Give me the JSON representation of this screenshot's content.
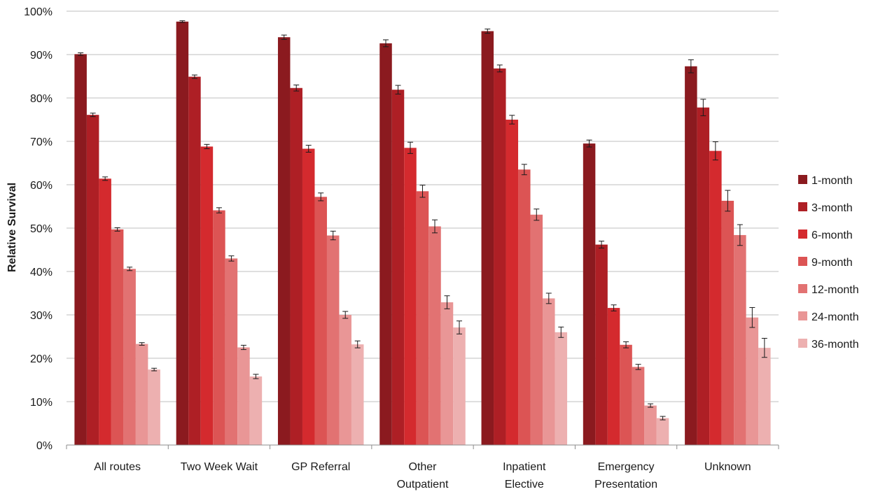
{
  "chart_data": {
    "type": "bar",
    "title": "",
    "xlabel": "",
    "ylabel": "Relative Survival",
    "ylim": [
      0,
      100
    ],
    "yticks": [
      "0%",
      "10%",
      "20%",
      "30%",
      "40%",
      "50%",
      "60%",
      "70%",
      "80%",
      "90%",
      "100%"
    ],
    "grid": true,
    "legend_position": "right",
    "categories": [
      [
        "All routes"
      ],
      [
        "Two Week Wait"
      ],
      [
        "GP Referral"
      ],
      [
        "Other",
        "Outpatient"
      ],
      [
        "Inpatient",
        "Elective"
      ],
      [
        "Emergency",
        "Presentation"
      ],
      [
        "Unknown"
      ]
    ],
    "series": [
      {
        "name": "1-month",
        "color": "#8B1A1F",
        "values": [
          90.1,
          97.6,
          94.0,
          92.6,
          95.4,
          69.5,
          87.3
        ],
        "err": [
          0.3,
          0.2,
          0.5,
          0.8,
          0.5,
          0.8,
          1.5
        ]
      },
      {
        "name": "3-month",
        "color": "#AE1F25",
        "values": [
          76.1,
          84.9,
          82.3,
          81.9,
          86.8,
          46.2,
          77.8
        ],
        "err": [
          0.4,
          0.4,
          0.7,
          1.0,
          0.8,
          0.8,
          1.9
        ]
      },
      {
        "name": "6-month",
        "color": "#D42A2E",
        "values": [
          61.4,
          68.8,
          68.3,
          68.5,
          75.0,
          31.6,
          67.8
        ],
        "err": [
          0.4,
          0.5,
          0.8,
          1.3,
          1.0,
          0.7,
          2.1
        ]
      },
      {
        "name": "9-month",
        "color": "#DC5454",
        "values": [
          49.7,
          54.1,
          57.2,
          58.5,
          63.5,
          23.1,
          56.3
        ],
        "err": [
          0.4,
          0.6,
          0.9,
          1.4,
          1.2,
          0.7,
          2.4
        ]
      },
      {
        "name": "12-month",
        "color": "#E27272",
        "values": [
          40.6,
          43.0,
          48.3,
          50.4,
          53.1,
          18.0,
          48.4
        ],
        "err": [
          0.4,
          0.6,
          1.0,
          1.5,
          1.3,
          0.6,
          2.4
        ]
      },
      {
        "name": "24-month",
        "color": "#E99696",
        "values": [
          23.3,
          22.5,
          30.0,
          32.9,
          33.8,
          9.1,
          29.4
        ],
        "err": [
          0.3,
          0.5,
          0.8,
          1.5,
          1.2,
          0.4,
          2.3
        ]
      },
      {
        "name": "36-month",
        "color": "#EDB0B0",
        "values": [
          17.4,
          15.8,
          23.2,
          27.1,
          26.0,
          6.2,
          22.4
        ],
        "err": [
          0.3,
          0.5,
          0.8,
          1.5,
          1.2,
          0.4,
          2.2
        ]
      }
    ]
  }
}
